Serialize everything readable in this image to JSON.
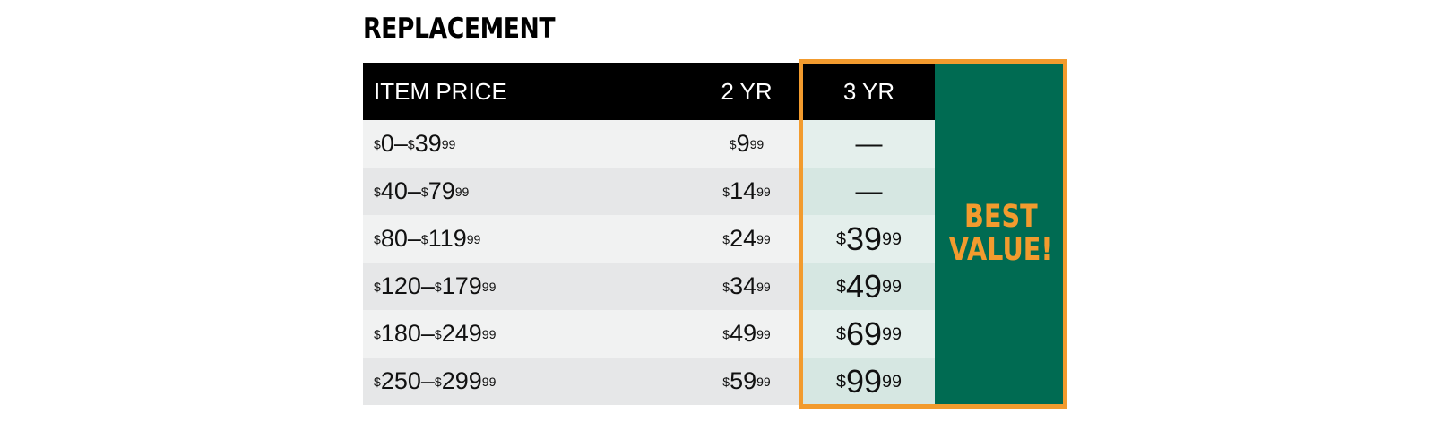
{
  "title": "REPLACEMENT",
  "headers": {
    "item_price": "ITEM PRICE",
    "two_yr": "2 YR",
    "three_yr": "3 YR"
  },
  "badge": {
    "line1": "BEST",
    "line2": "VALUE!"
  },
  "rows": [
    {
      "range_low": "0",
      "range_high": "39",
      "range_high_cents": "99",
      "two_yr_dollars": "9",
      "two_yr_cents": "99",
      "three_yr": "—"
    },
    {
      "range_low": "40",
      "range_high": "79",
      "range_high_cents": "99",
      "two_yr_dollars": "14",
      "two_yr_cents": "99",
      "three_yr": "—"
    },
    {
      "range_low": "80",
      "range_high": "119",
      "range_high_cents": "99",
      "two_yr_dollars": "24",
      "two_yr_cents": "99",
      "three_yr_dollars": "39",
      "three_yr_cents": "99"
    },
    {
      "range_low": "120",
      "range_high": "179",
      "range_high_cents": "99",
      "two_yr_dollars": "34",
      "two_yr_cents": "99",
      "three_yr_dollars": "49",
      "three_yr_cents": "99"
    },
    {
      "range_low": "180",
      "range_high": "249",
      "range_high_cents": "99",
      "two_yr_dollars": "49",
      "two_yr_cents": "99",
      "three_yr_dollars": "69",
      "three_yr_cents": "99"
    },
    {
      "range_low": "250",
      "range_high": "299",
      "range_high_cents": "99",
      "two_yr_dollars": "59",
      "two_yr_cents": "99",
      "three_yr_dollars": "99",
      "three_yr_cents": "99"
    }
  ],
  "currency_symbol": "$",
  "range_separator": " – ",
  "colors": {
    "header_bg": "#000000",
    "best_value_bg": "#006b52",
    "accent_orange": "#f29b2e"
  }
}
